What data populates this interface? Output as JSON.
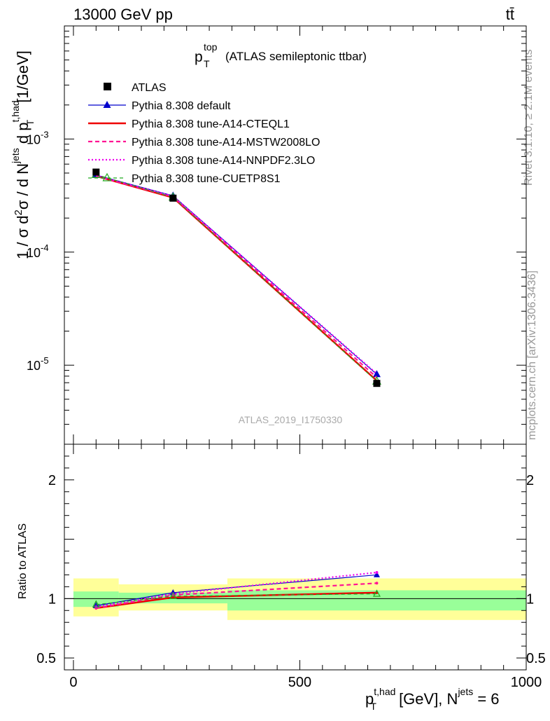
{
  "header": {
    "energy_label": "13000 GeV pp",
    "process_label": "tt̄"
  },
  "side_labels": {
    "rivet": "Rivet 3.1.10, ≥ 2.1M events",
    "mcplots": "mcplots.cern.ch [arXiv:1306.3436]"
  },
  "chart_data": [
    {
      "type": "line",
      "title_main": "p",
      "title_sub": "T",
      "title_sup": "top",
      "title_rest": "(ATLAS semileptonic ttbar)",
      "ylabel_parts": {
        "prefix": "1 / σ d",
        "sup1": "2",
        "mid": "σ / d N",
        "sup2": "jets",
        "mid2": " d p",
        "sup3": "t,had",
        "sub3": "T",
        "unit": " [1/GeV]"
      },
      "yscale": "log",
      "ylim": [
        2e-06,
        0.01
      ],
      "xlim": [
        -20,
        1000
      ],
      "yticks": [
        {
          "mantissa": "10",
          "exp": "-3",
          "value": 0.001
        },
        {
          "mantissa": "10",
          "exp": "-4",
          "value": 0.0001
        },
        {
          "mantissa": "10",
          "exp": "-5",
          "value": 1e-05
        }
      ],
      "watermark": "ATLAS_2019_I1750330",
      "legend_position": "top-left",
      "data": {
        "name": "ATLAS",
        "color": "#000000",
        "x": [
          50,
          220,
          670
        ],
        "y": [
          0.00051,
          0.0003,
          6.9e-06
        ]
      },
      "series": [
        {
          "name": "Pythia 8.308 default",
          "color": "#0000cc",
          "style": "solid-thin",
          "marker": "triangle-filled",
          "x": [
            50,
            220,
            670
          ],
          "y": [
            0.00048,
            0.000315,
            8.3e-06
          ]
        },
        {
          "name": "Pythia 8.308 tune-A14-CTEQL1",
          "color": "#ee0000",
          "style": "solid",
          "marker": "none",
          "x": [
            50,
            220,
            670
          ],
          "y": [
            0.00047,
            0.000303,
            7.3e-06
          ]
        },
        {
          "name": "Pythia 8.308 tune-A14-MSTW2008LO",
          "color": "#ff1493",
          "style": "dashed",
          "marker": "none",
          "x": [
            50,
            220,
            670
          ],
          "y": [
            0.00047,
            0.000308,
            7.8e-06
          ]
        },
        {
          "name": "Pythia 8.308 tune-A14-NNPDF2.3LO",
          "color": "#ee00ee",
          "style": "dotted",
          "marker": "none",
          "x": [
            50,
            220,
            670
          ],
          "y": [
            0.000475,
            0.000312,
            8.4e-06
          ]
        },
        {
          "name": "Pythia 8.308 tune-CUETP8S1",
          "color": "#22aa22",
          "style": "dashed-thin",
          "marker": "triangle-open",
          "x": [
            50,
            220,
            670
          ],
          "y": [
            0.000485,
            0.000305,
            7.2e-06
          ]
        }
      ]
    },
    {
      "type": "line",
      "ylabel": "Ratio to ATLAS",
      "xlabel_parts": {
        "main": "p",
        "sup": "t,had",
        "sub": "T",
        "unit": " [GeV], N",
        "sup2": "jets",
        "tail": " = 6"
      },
      "ylim": [
        0.4,
        2.3
      ],
      "xlim": [
        -20,
        1000
      ],
      "yticks": [
        "0.5",
        "1",
        "2"
      ],
      "ytick_values": [
        0.5,
        1,
        2
      ],
      "xticks": [
        "0",
        "500",
        "1000"
      ],
      "xtick_values": [
        0,
        500,
        1000
      ],
      "bands": {
        "stat_color": "#99ff99",
        "total_color": "#ffff99",
        "bins": [
          {
            "x_low": 0,
            "x_high": 100,
            "stat": [
              0.93,
              1.06
            ],
            "total": [
              0.85,
              1.17
            ]
          },
          {
            "x_low": 100,
            "x_high": 340,
            "stat": [
              0.96,
              1.05
            ],
            "total": [
              0.9,
              1.12
            ]
          },
          {
            "x_low": 340,
            "x_high": 1000,
            "stat": [
              0.9,
              1.07
            ],
            "total": [
              0.82,
              1.17
            ]
          }
        ]
      },
      "series": [
        {
          "name": "Pythia 8.308 default",
          "color": "#0000cc",
          "x": [
            50,
            220,
            670
          ],
          "y": [
            0.94,
            1.05,
            1.2
          ]
        },
        {
          "name": "Pythia 8.308 tune-A14-CTEQL1",
          "color": "#ee0000",
          "x": [
            50,
            220,
            670
          ],
          "y": [
            0.92,
            1.01,
            1.05
          ]
        },
        {
          "name": "Pythia 8.308 tune-A14-MSTW2008LO",
          "color": "#ff1493",
          "x": [
            50,
            220,
            670
          ],
          "y": [
            0.92,
            1.03,
            1.13
          ]
        },
        {
          "name": "Pythia 8.308 tune-A14-NNPDF2.3LO",
          "color": "#ee00ee",
          "x": [
            50,
            220,
            670
          ],
          "y": [
            0.93,
            1.04,
            1.22
          ]
        },
        {
          "name": "Pythia 8.308 tune-CUETP8S1",
          "color": "#22aa22",
          "x": [
            50,
            220,
            670
          ],
          "y": [
            0.95,
            1.02,
            1.04
          ]
        }
      ]
    }
  ]
}
